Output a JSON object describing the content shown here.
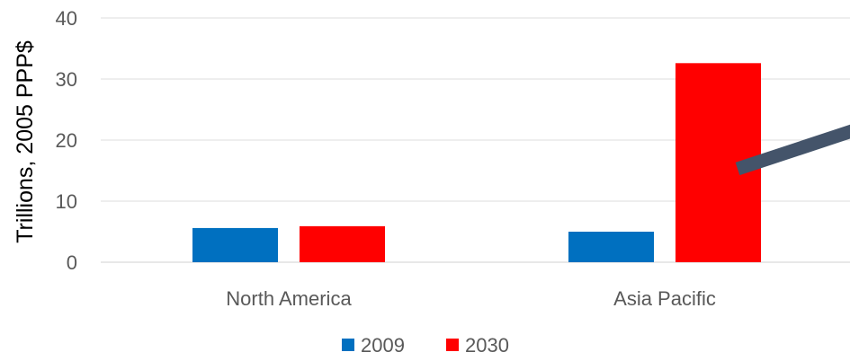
{
  "chart_data": {
    "type": "bar",
    "categories": [
      "North America",
      "Asia Pacific"
    ],
    "series": [
      {
        "name": "2009",
        "color": "#0070c0",
        "values": [
          5.6,
          5.0
        ]
      },
      {
        "name": "2030",
        "color": "#ff0000",
        "values": [
          5.9,
          32.6
        ]
      }
    ],
    "ylabel": "Trillions, 2005 PPP$",
    "ylim": [
      0,
      40
    ],
    "yticks": [
      0,
      10,
      20,
      30,
      40
    ],
    "grid": true,
    "legend": "bottom",
    "annotation": {
      "type": "arrow",
      "color": "#44546a",
      "description": "thick diagonal stroke pointing up-right from the Asia Pacific 2030 bar"
    }
  }
}
